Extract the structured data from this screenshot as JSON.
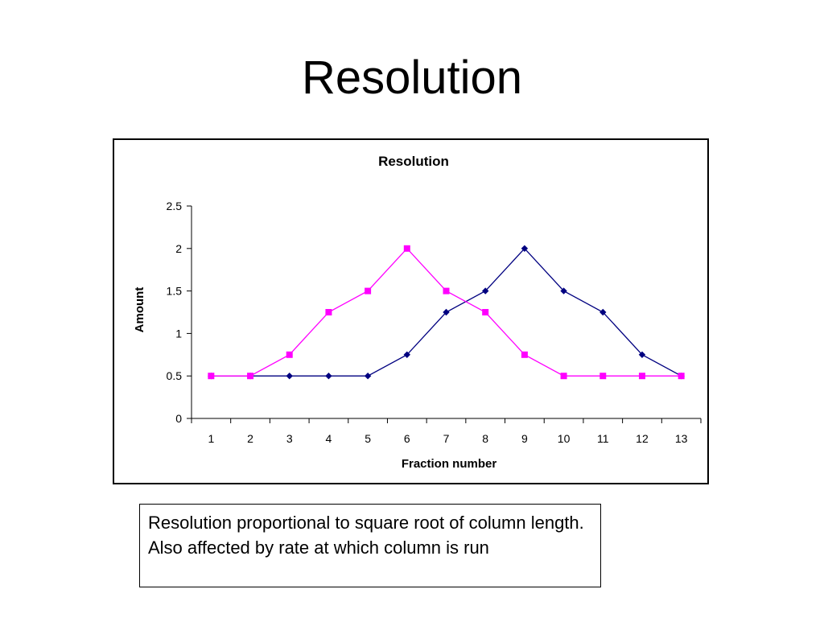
{
  "slide": {
    "title": "Resolution",
    "note": "Resolution proportional to square root of column length. Also affected by rate at which column is run"
  },
  "chart_data": {
    "type": "line",
    "title": "Resolution",
    "xlabel": "Fraction number",
    "ylabel": "Amount",
    "x": [
      1,
      2,
      3,
      4,
      5,
      6,
      7,
      8,
      9,
      10,
      11,
      12,
      13
    ],
    "ylim": [
      0,
      2.5
    ],
    "yticks": [
      0,
      0.5,
      1,
      1.5,
      2,
      2.5
    ],
    "grid": false,
    "legend": "none",
    "series": [
      {
        "marker": "diamond",
        "color": "#000080",
        "values": [
          0.5,
          0.5,
          0.5,
          0.5,
          0.5,
          0.75,
          1.25,
          1.5,
          2,
          1.5,
          1.25,
          0.75,
          0.5
        ]
      },
      {
        "marker": "square",
        "color": "#ff00ff",
        "values": [
          0.5,
          0.5,
          0.75,
          1.25,
          1.5,
          2,
          1.5,
          1.25,
          0.75,
          0.5,
          0.5,
          0.5,
          0.5
        ]
      }
    ]
  }
}
